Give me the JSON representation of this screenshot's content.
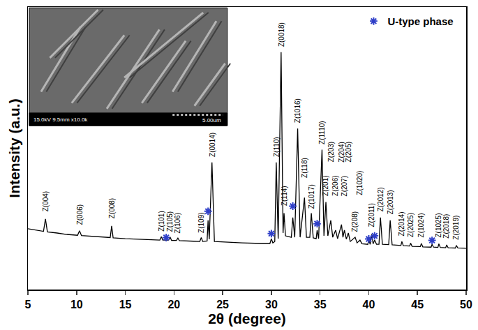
{
  "chart_data": {
    "type": "line",
    "x_label": "2θ (degree)",
    "y_label": "Intensity (a.u.)",
    "xlim": [
      5,
      50
    ],
    "xticks": [
      5,
      10,
      15,
      20,
      25,
      30,
      35,
      40,
      45,
      50
    ],
    "ylim": [
      0,
      100
    ],
    "tick_labels": "x",
    "grid": false,
    "legend": "upper right",
    "series": [
      {
        "type": "line",
        "color": "#000000",
        "line_style": "solid",
        "x": [
          5.0,
          5.5,
          6.0,
          6.6,
          6.8,
          7.0,
          8.0,
          9.0,
          10.1,
          10.3,
          10.5,
          11.5,
          12.5,
          13.45,
          13.6,
          13.75,
          15.0,
          16.5,
          18.0,
          18.55,
          18.7,
          18.85,
          19.45,
          19.6,
          19.75,
          20.25,
          20.4,
          20.55,
          22.0,
          22.65,
          22.8,
          22.95,
          23.4,
          23.5,
          23.62,
          23.9,
          24.15,
          25.0,
          27.0,
          29.0,
          29.85,
          30.0,
          30.15,
          30.35,
          30.5,
          30.7,
          31.0,
          31.2,
          31.3,
          31.45,
          32.05,
          32.2,
          32.4,
          32.7,
          32.95,
          33.4,
          33.6,
          33.95,
          34.1,
          34.3,
          34.6,
          34.7,
          34.85,
          35.2,
          35.4,
          35.6,
          35.8,
          36.1,
          36.3,
          36.6,
          36.8,
          37.2,
          37.35,
          37.5,
          37.7,
          37.9,
          38.1,
          38.6,
          38.8,
          39.1,
          39.3,
          39.9,
          40.0,
          40.15,
          40.3,
          40.45,
          40.6,
          40.8,
          41.05,
          41.2,
          41.4,
          42.05,
          42.2,
          42.4,
          43.3,
          43.4,
          43.55,
          44.2,
          44.3,
          44.45,
          45.3,
          45.4,
          45.55,
          46.4,
          46.5,
          46.65,
          47.1,
          47.2,
          47.35,
          47.9,
          48.0,
          48.15,
          48.9,
          49.0,
          49.15,
          50.0
        ],
        "values": [
          21.5,
          21.2,
          20.8,
          20.6,
          25,
          20.4,
          20.0,
          19.5,
          19.2,
          20.8,
          19.1,
          18.8,
          18.6,
          18.4,
          22.5,
          18.3,
          18.0,
          17.8,
          17.6,
          17.5,
          18.7,
          17.5,
          17.5,
          18.6,
          17.4,
          17.4,
          18.2,
          17.3,
          17.1,
          17.0,
          18.4,
          17.0,
          17.2,
          24.5,
          17.8,
          45,
          17,
          16.8,
          16.5,
          16.3,
          16.3,
          18.0,
          16.5,
          17,
          45,
          18,
          84,
          20,
          27,
          19,
          18.5,
          25.5,
          18.5,
          57,
          18.5,
          32.5,
          18.5,
          18.5,
          27,
          18.3,
          18,
          21,
          18,
          49.5,
          19,
          31,
          19,
          24.5,
          18.5,
          21,
          18,
          23,
          18.5,
          21,
          17.8,
          20,
          17,
          18.5,
          16.5,
          17.5,
          16.2,
          16,
          17.5,
          16,
          19.5,
          16.2,
          17.5,
          16,
          16,
          25.5,
          16,
          15.9,
          24.5,
          15.8,
          15.6,
          17,
          15.5,
          15.4,
          16.4,
          15.3,
          15.2,
          16.3,
          15.1,
          15.0,
          16.0,
          15.0,
          14.9,
          16.2,
          14.9,
          14.8,
          15.8,
          14.8,
          14.7,
          15.6,
          14.7,
          14.6
        ]
      },
      {
        "name": "U-type phase",
        "type": "scatter",
        "marker": "asterisk",
        "color": "#2f3fc8",
        "x": [
          19.2,
          23.5,
          30.0,
          32.2,
          34.7,
          40.0,
          40.6,
          46.5
        ],
        "values": [
          18.4,
          27.7,
          19.8,
          29.5,
          23.3,
          17.9,
          19.0,
          17.4
        ]
      }
    ],
    "annotations": [
      {
        "text": "Z(004)",
        "x": 6.8,
        "y": 27
      },
      {
        "text": "Z(006)",
        "x": 10.3,
        "y": 22.5
      },
      {
        "text": "Z(008)",
        "x": 13.6,
        "y": 24.5
      },
      {
        "text": "Z(101)",
        "x": 18.7,
        "y": 20
      },
      {
        "text": "Z(105)",
        "x": 19.6,
        "y": 20
      },
      {
        "text": "Z(106)",
        "x": 20.4,
        "y": 19.5
      },
      {
        "text": "Z(109)",
        "x": 22.8,
        "y": 19.5
      },
      {
        "text": "Z(0014)",
        "x": 23.9,
        "y": 46.5
      },
      {
        "text": "Z(110)",
        "x": 30.5,
        "y": 46.5
      },
      {
        "text": "Z(0018)",
        "x": 31.0,
        "y": 85.5
      },
      {
        "text": "Z(114)",
        "x": 31.3,
        "y": 29
      },
      {
        "text": "Z(1016)",
        "x": 32.7,
        "y": 58.5
      },
      {
        "text": "Z(118)",
        "x": 33.4,
        "y": 39
      },
      {
        "text": "Z(1017)",
        "x": 34.1,
        "y": 28
      },
      {
        "text": "Z(1110)",
        "x": 35.2,
        "y": 51
      },
      {
        "text": "Z(201)",
        "x": 35.6,
        "y": 32.5
      },
      {
        "text": "Z(203)",
        "x": 36.1,
        "y": 44.5
      },
      {
        "text": "Z(206)",
        "x": 36.6,
        "y": 32.5
      },
      {
        "text": "Z(204)",
        "x": 37.2,
        "y": 44.5
      },
      {
        "text": "Z(207)",
        "x": 37.5,
        "y": 32.5
      },
      {
        "text": "Z(205)",
        "x": 37.9,
        "y": 44.5
      },
      {
        "text": "Z(208)",
        "x": 38.6,
        "y": 20
      },
      {
        "text": "Z(1020)",
        "x": 39.1,
        "y": 33
      },
      {
        "text": "Z(2011)",
        "x": 40.3,
        "y": 21.5
      },
      {
        "text": "Z(2012)",
        "x": 41.2,
        "y": 27
      },
      {
        "text": "Z(2013)",
        "x": 42.2,
        "y": 26
      },
      {
        "text": "Z(2014)",
        "x": 43.4,
        "y": 18.5
      },
      {
        "text": "Z(2025)",
        "x": 44.3,
        "y": 18
      },
      {
        "text": "Z(1024)",
        "x": 45.4,
        "y": 18
      },
      {
        "text": "Z(1025)",
        "x": 47.2,
        "y": 18
      },
      {
        "text": "Z(2018)",
        "x": 48.0,
        "y": 17.5
      },
      {
        "text": "Z(2019)",
        "x": 49.0,
        "y": 17
      }
    ],
    "inset": {
      "info": "15.0kV 9.5mm x10.0k",
      "scale_bar": "5.00um"
    }
  }
}
